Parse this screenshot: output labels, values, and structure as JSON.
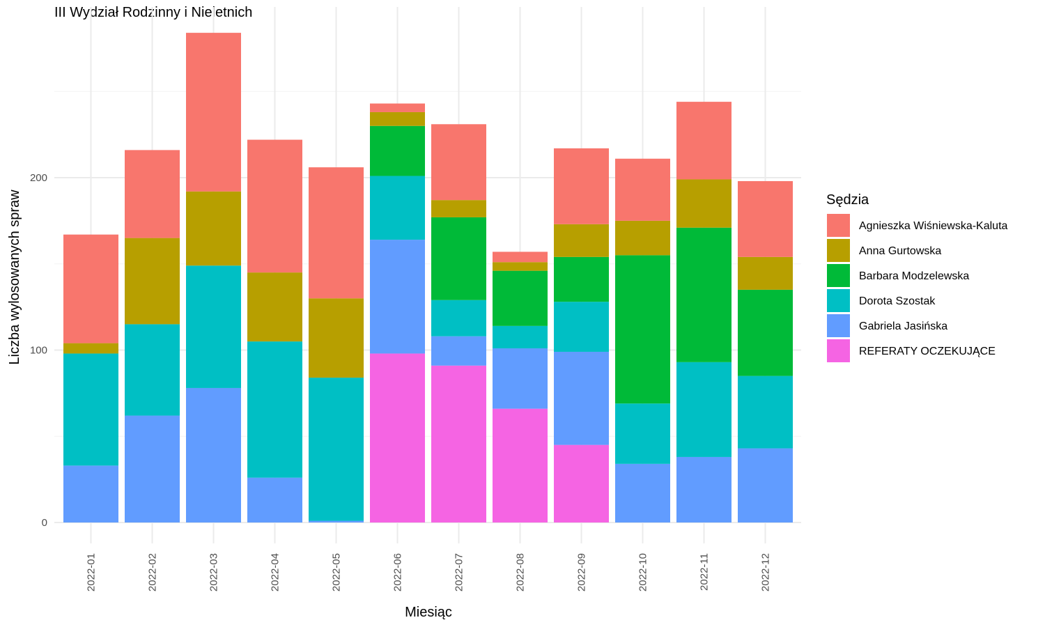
{
  "chart_data": {
    "type": "bar",
    "stacked": true,
    "title": "III Wydział Rodzinny i Nieletnich",
    "xlabel": "Miesiąc",
    "ylabel": "Liczba wylosowanych spraw",
    "ylim": [
      0,
      290
    ],
    "yticks": [
      0,
      100,
      200
    ],
    "grid": true,
    "legend_title": "Sędzia",
    "legend_position": "right",
    "categories": [
      "2022-01",
      "2022-02",
      "2022-03",
      "2022-04",
      "2022-05",
      "2022-06",
      "2022-07",
      "2022-08",
      "2022-09",
      "2022-10",
      "2022-11",
      "2022-12"
    ],
    "series": [
      {
        "name": "Agnieszka Wiśniewska-Kaluta",
        "color": "#F8766D",
        "values": [
          63,
          51,
          92,
          77,
          76,
          5,
          44,
          6,
          44,
          36,
          45,
          44
        ]
      },
      {
        "name": "Anna Gurtowska",
        "color": "#B79F00",
        "values": [
          6,
          50,
          43,
          40,
          46,
          8,
          10,
          5,
          19,
          20,
          28,
          19
        ]
      },
      {
        "name": "Barbara Modzelewska",
        "color": "#00BA38",
        "values": [
          0,
          0,
          0,
          0,
          0,
          29,
          48,
          32,
          26,
          86,
          78,
          50
        ]
      },
      {
        "name": "Dorota Szostak",
        "color": "#00BFC4",
        "values": [
          65,
          53,
          71,
          79,
          83,
          37,
          21,
          13,
          29,
          35,
          55,
          42
        ]
      },
      {
        "name": "Gabriela Jasińska",
        "color": "#619CFF",
        "values": [
          33,
          62,
          78,
          26,
          1,
          66,
          17,
          35,
          54,
          34,
          38,
          43
        ]
      },
      {
        "name": "REFERATY OCZEKUJĄCE",
        "color": "#F564E3",
        "values": [
          0,
          0,
          0,
          0,
          0,
          98,
          91,
          66,
          45,
          0,
          0,
          0
        ]
      }
    ]
  }
}
